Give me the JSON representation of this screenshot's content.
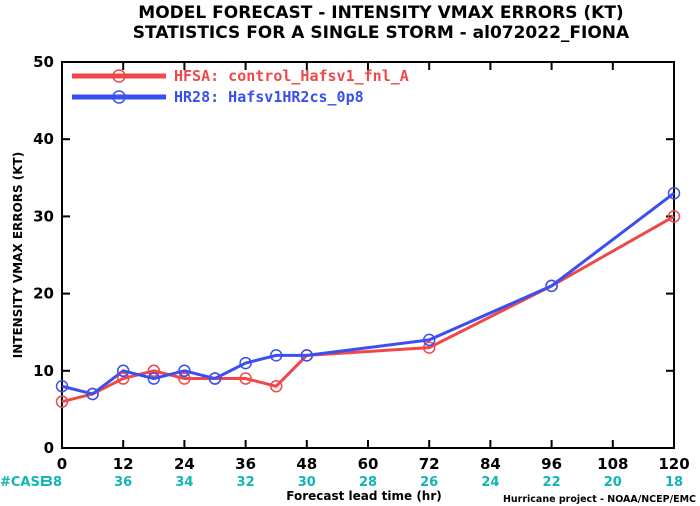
{
  "chart_data": {
    "type": "line",
    "title": "MODEL FORECAST - INTENSITY VMAX ERRORS (KT)",
    "subtitle": "STATISTICS FOR A SINGLE STORM - al072022_FIONA",
    "xlabel": "Forecast lead time (hr)",
    "ylabel": "INTENSITY VMAX ERRORS (KT)",
    "xlim": [
      0,
      120
    ],
    "ylim": [
      0,
      50
    ],
    "xticks": [
      0,
      12,
      24,
      36,
      48,
      60,
      72,
      84,
      96,
      108,
      120
    ],
    "yticks": [
      0,
      10,
      20,
      30,
      40,
      50
    ],
    "grid": false,
    "legend_position": "top-left",
    "series": [
      {
        "name": "HFSA: control_Hafsv1_fnl_A",
        "color": "#f04848",
        "x": [
          0,
          6,
          12,
          18,
          24,
          30,
          36,
          42,
          48,
          72,
          96,
          120
        ],
        "y": [
          6,
          7,
          9,
          10,
          9,
          9,
          9,
          8,
          12,
          13,
          21,
          30
        ]
      },
      {
        "name": "HR28: Hafsv1HR2cs_0p8",
        "color": "#3a4ff0",
        "x": [
          0,
          6,
          12,
          18,
          24,
          30,
          36,
          42,
          48,
          72,
          96,
          120
        ],
        "y": [
          8,
          7,
          10,
          9,
          10,
          9,
          11,
          12,
          12,
          14,
          21,
          33
        ]
      }
    ],
    "case_label": "#CASE",
    "case_counts": [
      {
        "x": 0,
        "n": "38"
      },
      {
        "x": 12,
        "n": "36"
      },
      {
        "x": 24,
        "n": "34"
      },
      {
        "x": 36,
        "n": "32"
      },
      {
        "x": 48,
        "n": "30"
      },
      {
        "x": 60,
        "n": "28"
      },
      {
        "x": 72,
        "n": "26"
      },
      {
        "x": 84,
        "n": "24"
      },
      {
        "x": 96,
        "n": "22"
      },
      {
        "x": 108,
        "n": "20"
      },
      {
        "x": 120,
        "n": "18"
      }
    ],
    "footer": "Hurricane project - NOAA/NCEP/EMC"
  }
}
